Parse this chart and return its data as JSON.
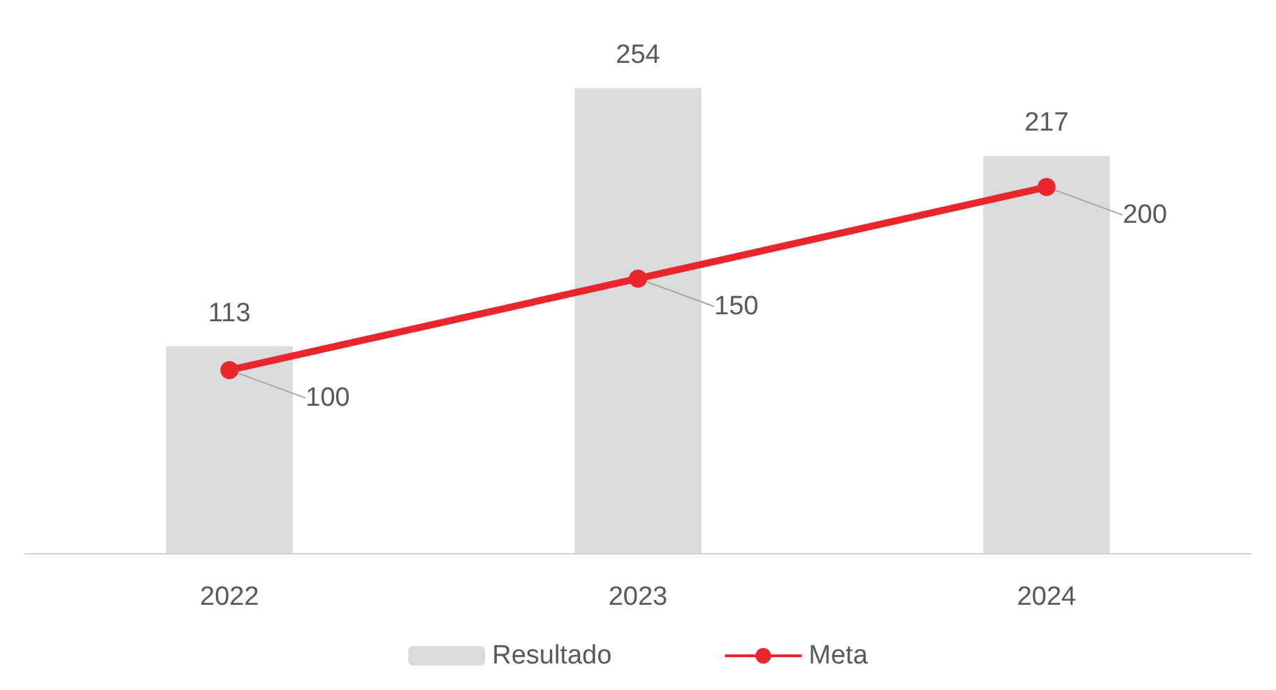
{
  "chart_data": {
    "type": "bar",
    "categories": [
      "2022",
      "2023",
      "2024"
    ],
    "series": [
      {
        "name": "Resultado",
        "color": "#dadbdc",
        "values": [
          113,
          254,
          217
        ]
      },
      {
        "name": "Meta",
        "type": "line",
        "color": "#e8262b",
        "values": [
          100,
          150,
          200
        ],
        "marker": "circle"
      }
    ],
    "data_labels": true,
    "legend": "bottom"
  }
}
